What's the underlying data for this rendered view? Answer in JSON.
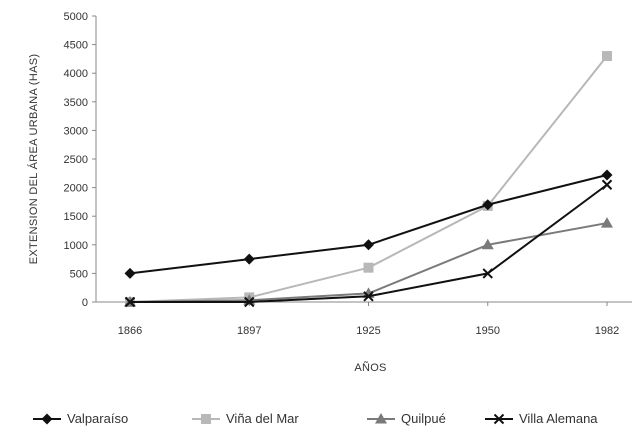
{
  "chart_data": {
    "type": "line",
    "x": [
      "1866",
      "1897",
      "1925",
      "1950",
      "1982"
    ],
    "ylabel": "EXTENSION DEL ÁREA URBANA (HAS)",
    "xlabel": "AÑOS",
    "ylim": [
      0,
      5000
    ],
    "yticks": [
      "0",
      "500",
      "1000",
      "1500",
      "2000",
      "2500",
      "3000",
      "3500",
      "4000",
      "4500",
      "5000"
    ],
    "grid": false,
    "legend_position": "bottom",
    "series": [
      {
        "name": "Valparaíso",
        "values": [
          500,
          750,
          1000,
          1700,
          2220
        ],
        "color": "#111111",
        "marker": "diamond"
      },
      {
        "name": "Viña del Mar",
        "values": [
          0,
          80,
          600,
          1680,
          4300
        ],
        "color": "#b8b8b8",
        "marker": "square"
      },
      {
        "name": "Quilpué",
        "values": [
          0,
          30,
          150,
          1000,
          1380
        ],
        "color": "#7a7a7a",
        "marker": "triangle"
      },
      {
        "name": "Villa Alemana",
        "values": [
          0,
          0,
          100,
          500,
          2050
        ],
        "color": "#111111",
        "marker": "x"
      }
    ]
  }
}
